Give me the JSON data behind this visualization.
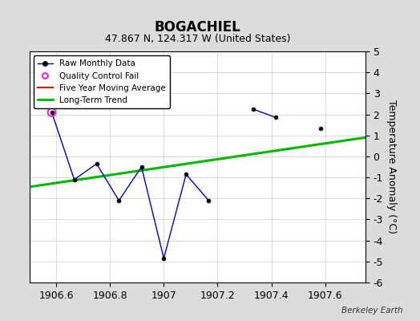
{
  "title": "BOGACHIEL",
  "subtitle": "47.867 N, 124.317 W (United States)",
  "ylabel": "Temperature Anomaly (°C)",
  "xlim": [
    1906.5,
    1907.75
  ],
  "ylim": [
    -6,
    5
  ],
  "xticks": [
    1906.6,
    1906.8,
    1907.0,
    1907.2,
    1907.4,
    1907.6
  ],
  "yticks": [
    -6,
    -5,
    -4,
    -3,
    -2,
    -1,
    0,
    1,
    2,
    3,
    4,
    5
  ],
  "background_color": "#dcdcdc",
  "plot_bg_color": "#ffffff",
  "raw_segments": [
    {
      "x": [
        1906.583,
        1906.667,
        1906.75,
        1906.833,
        1906.917,
        1907.0,
        1907.083,
        1907.167
      ],
      "y": [
        2.1,
        -1.1,
        -0.35,
        -2.1,
        -0.5,
        -4.85,
        -0.85,
        -2.1
      ]
    },
    {
      "x": [
        1907.333,
        1907.417
      ],
      "y": [
        2.25,
        1.85
      ]
    }
  ],
  "isolated_points_x": [
    1907.583
  ],
  "isolated_points_y": [
    1.35
  ],
  "qc_fail_x": [
    1906.583
  ],
  "qc_fail_y": [
    2.1
  ],
  "trend_x": [
    1906.5,
    1907.75
  ],
  "trend_y": [
    -1.45,
    0.9
  ],
  "raw_line_color": "#0000cc",
  "raw_marker_color": "#000000",
  "qc_fail_color": "#ff00ff",
  "trend_color": "#00bb00",
  "moving_avg_color": "#ff0000",
  "watermark": "Berkeley Earth",
  "title_fontsize": 12,
  "subtitle_fontsize": 9,
  "label_fontsize": 9,
  "tick_fontsize": 9,
  "grid_color": "#cccccc"
}
